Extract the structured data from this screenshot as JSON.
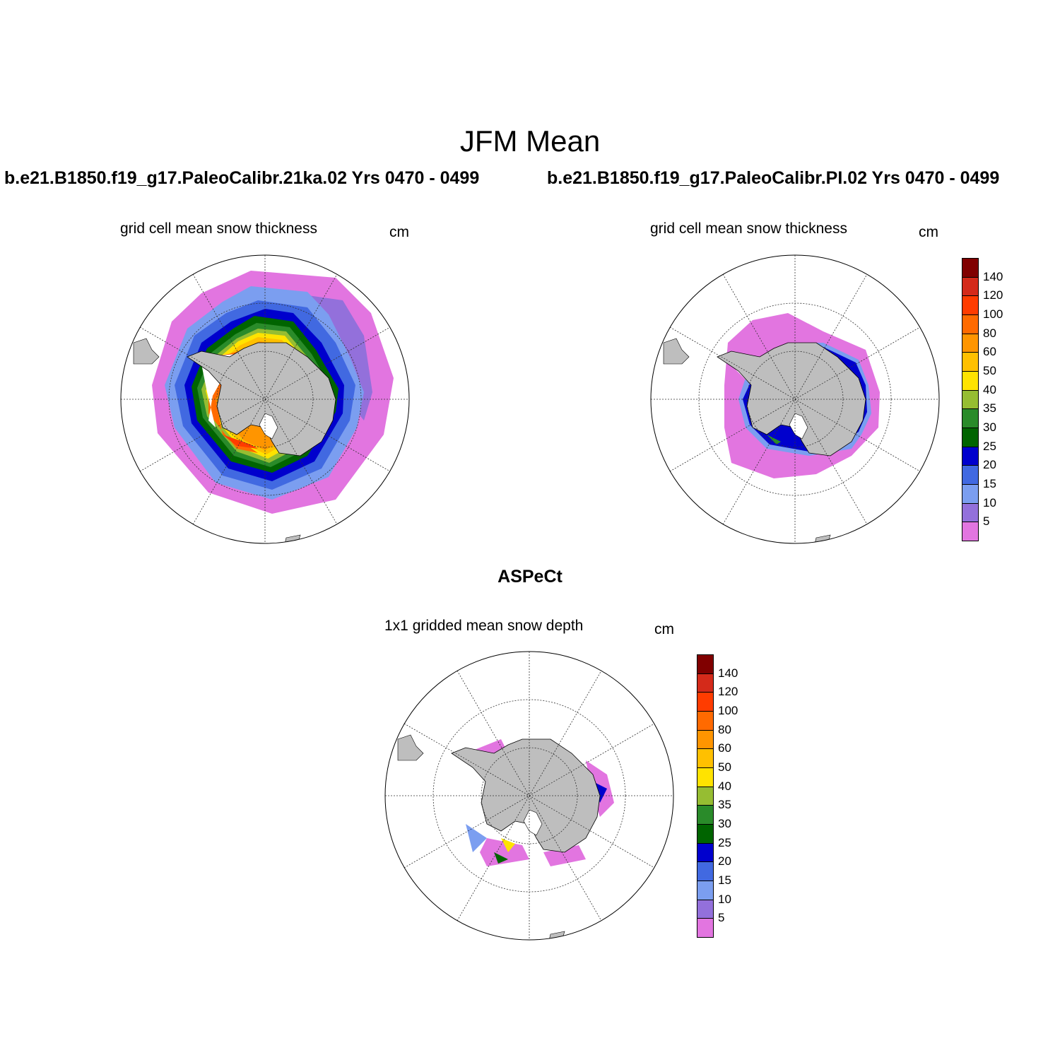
{
  "figure": {
    "title": "JFM Mean",
    "obs_title": "ASPeCt"
  },
  "panels": [
    {
      "case": "b.e21.B1850.f19_g17.PaleoCalibr.21ka.02  Yrs 0470 - 0499",
      "label": "grid cell mean snow thickness",
      "units": "cm",
      "field": "model-21ka"
    },
    {
      "case": "b.e21.B1850.f19_g17.PaleoCalibr.PI.02  Yrs 0470 - 0499",
      "label": "grid cell mean snow thickness",
      "units": "cm",
      "field": "model-pi"
    },
    {
      "case": "",
      "label": "1x1 gridded mean snow depth",
      "units": "cm",
      "field": "observations"
    }
  ],
  "colorbar": {
    "tick_labels": [
      "140",
      "120",
      "100",
      "80",
      "60",
      "50",
      "40",
      "35",
      "30",
      "25",
      "20",
      "15",
      "10",
      "5"
    ],
    "colors": [
      "#800000",
      "#d42a1a",
      "#ff3c00",
      "#ff6a00",
      "#ff9500",
      "#ffc000",
      "#ffe300",
      "#96bd32",
      "#2a8b2a",
      "#006400",
      "#0000cd",
      "#4169e1",
      "#7b9ef0",
      "#9370db",
      "#e275e0"
    ]
  },
  "map": {
    "land_color": "#bebebe",
    "projection": "south polar stereographic",
    "grid": "dotted lat/lon lines"
  }
}
